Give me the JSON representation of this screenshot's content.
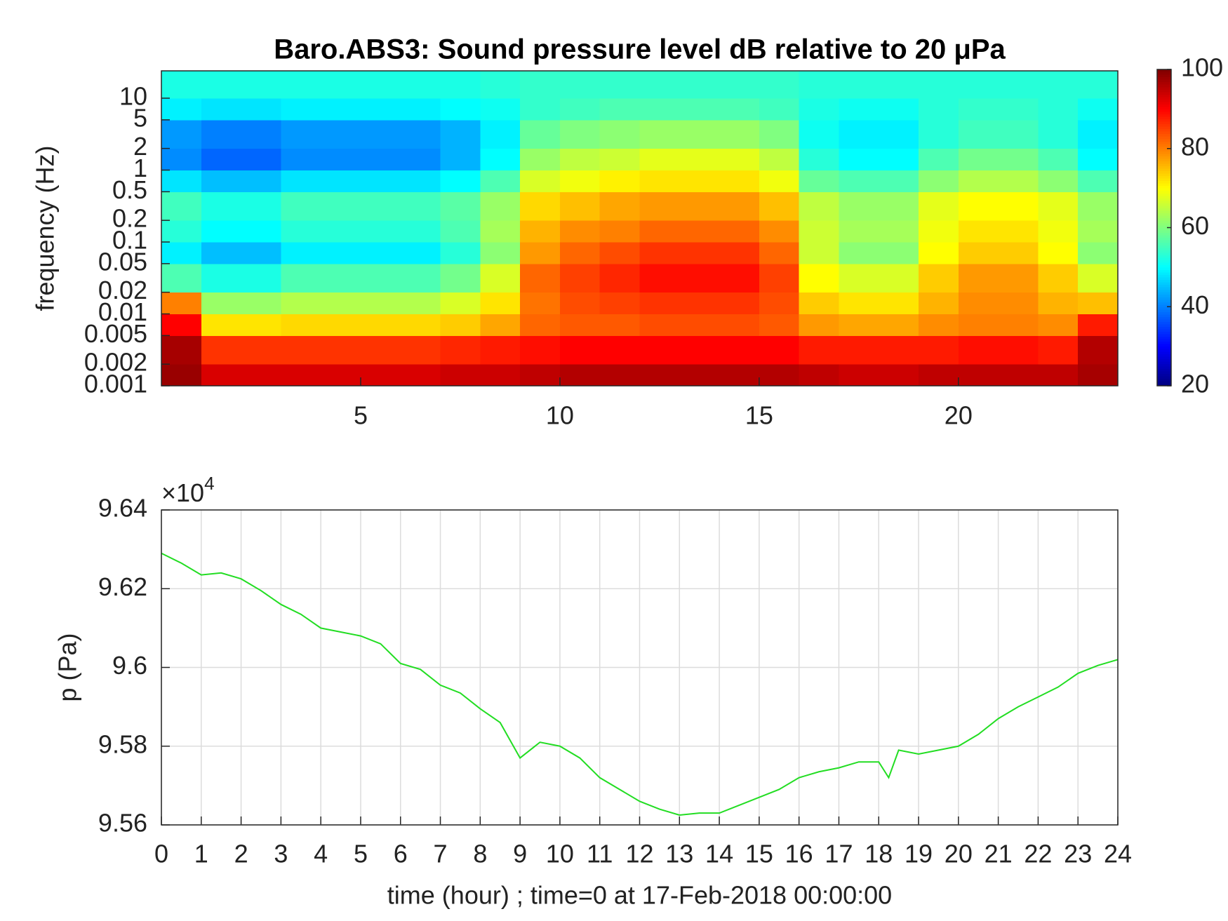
{
  "chart_data": [
    {
      "type": "heatmap",
      "title": "Baro.ABS3: Sound pressure level dB relative to 20 μPa",
      "ylabel": "frequency (Hz)",
      "colormap": "jet",
      "y_log": true,
      "x_bins": [
        0,
        1,
        2,
        3,
        4,
        5,
        6,
        7,
        8,
        9,
        10,
        11,
        12,
        13,
        14,
        15,
        16,
        17,
        18,
        19,
        20,
        21,
        22,
        23,
        24
      ],
      "y_bins": [
        0.001,
        0.002,
        0.005,
        0.01,
        0.02,
        0.05,
        0.1,
        0.2,
        0.5,
        1,
        2,
        5,
        10,
        24
      ],
      "values": [
        [
          98,
          93,
          93,
          93,
          93,
          93,
          93,
          94,
          94,
          95,
          96,
          96,
          96,
          96,
          96,
          96,
          95,
          94,
          94,
          95,
          95,
          95,
          95,
          97
        ],
        [
          97,
          86,
          86,
          86,
          86,
          86,
          86,
          87,
          88,
          89,
          90,
          90,
          90,
          90,
          90,
          90,
          88,
          88,
          88,
          88,
          89,
          89,
          88,
          96
        ],
        [
          90,
          72,
          72,
          73,
          73,
          73,
          73,
          74,
          77,
          82,
          83,
          83,
          84,
          84,
          84,
          83,
          78,
          77,
          77,
          79,
          80,
          80,
          79,
          88
        ],
        [
          80,
          62,
          62,
          64,
          64,
          64,
          64,
          67,
          72,
          81,
          84,
          85,
          86,
          86,
          86,
          84,
          74,
          72,
          72,
          76,
          79,
          79,
          76,
          75
        ],
        [
          56,
          52,
          52,
          56,
          56,
          56,
          56,
          59,
          67,
          82,
          85,
          87,
          89,
          89,
          89,
          85,
          70,
          67,
          67,
          74,
          78,
          78,
          74,
          67
        ],
        [
          49,
          45,
          45,
          49,
          49,
          49,
          49,
          53,
          61,
          78,
          82,
          84,
          86,
          86,
          86,
          82,
          66,
          61,
          61,
          70,
          74,
          74,
          70,
          61
        ],
        [
          53,
          50,
          50,
          53,
          53,
          53,
          53,
          56,
          63,
          76,
          79,
          80,
          82,
          82,
          82,
          79,
          66,
          63,
          63,
          69,
          72,
          72,
          69,
          63
        ],
        [
          55,
          52,
          52,
          55,
          55,
          55,
          55,
          57,
          62,
          73,
          75,
          77,
          78,
          78,
          78,
          75,
          65,
          62,
          62,
          68,
          70,
          70,
          68,
          62
        ],
        [
          48,
          45,
          45,
          48,
          48,
          48,
          48,
          50,
          56,
          67,
          69,
          71,
          72,
          72,
          72,
          69,
          58,
          56,
          56,
          61,
          64,
          64,
          61,
          56
        ],
        [
          41,
          38,
          38,
          41,
          41,
          41,
          41,
          44,
          50,
          62,
          65,
          66,
          68,
          68,
          68,
          65,
          53,
          50,
          50,
          56,
          59,
          59,
          56,
          50
        ],
        [
          42,
          40,
          40,
          42,
          42,
          42,
          42,
          44,
          49,
          58,
          60,
          61,
          62,
          62,
          62,
          60,
          51,
          49,
          49,
          53,
          55,
          55,
          53,
          49
        ],
        [
          49,
          48,
          48,
          49,
          49,
          49,
          49,
          50,
          51,
          54,
          55,
          56,
          56,
          56,
          56,
          55,
          52,
          51,
          51,
          53,
          54,
          54,
          53,
          51
        ],
        [
          52,
          52,
          52,
          52,
          52,
          52,
          52,
          52,
          53,
          54,
          54,
          54,
          54,
          54,
          54,
          54,
          53,
          53,
          53,
          53,
          53,
          53,
          53,
          53
        ]
      ],
      "xlim": [
        0,
        24
      ],
      "xticks": [
        5,
        10,
        15,
        20
      ],
      "ylim": [
        0.001,
        24
      ],
      "yticks": [
        0.001,
        0.002,
        0.005,
        0.01,
        0.02,
        0.05,
        0.1,
        0.2,
        0.5,
        1,
        2,
        5,
        10
      ],
      "clim": [
        20,
        100
      ],
      "cticks": [
        20,
        40,
        60,
        80,
        100
      ]
    },
    {
      "type": "line",
      "xlabel": "time (hour) ; time=0 at 17-Feb-2018 00:00:00",
      "ylabel": "p (Pa)",
      "y_multiplier": "×10",
      "y_multiplier_exponent": "4",
      "color": "#22dd22",
      "x": [
        0,
        0.5,
        1,
        1.5,
        2,
        2.5,
        3,
        3.5,
        4,
        4.5,
        5,
        5.5,
        6,
        6.5,
        7,
        7.5,
        8,
        8.5,
        9,
        9.5,
        10,
        10.5,
        11,
        11.5,
        12,
        12.5,
        13,
        13.5,
        14,
        14.5,
        15,
        15.5,
        16,
        16.5,
        17,
        17.5,
        18,
        18.25,
        18.5,
        19,
        19.5,
        20,
        20.5,
        21,
        21.5,
        22,
        22.5,
        23,
        23.5,
        24
      ],
      "values": [
        96290,
        96265,
        96235,
        96240,
        96225,
        96195,
        96160,
        96135,
        96100,
        96090,
        96080,
        96060,
        96010,
        95995,
        95955,
        95935,
        95895,
        95860,
        95770,
        95810,
        95800,
        95770,
        95720,
        95690,
        95660,
        95640,
        95625,
        95630,
        95630,
        95650,
        95670,
        95690,
        95720,
        95735,
        95745,
        95760,
        95760,
        95720,
        95790,
        95780,
        95790,
        95800,
        95830,
        95870,
        95900,
        95925,
        95950,
        95985,
        96005,
        96020
      ],
      "xlim": [
        0,
        24
      ],
      "xticks": [
        0,
        1,
        2,
        3,
        4,
        5,
        6,
        7,
        8,
        9,
        10,
        11,
        12,
        13,
        14,
        15,
        16,
        17,
        18,
        19,
        20,
        21,
        22,
        23,
        24
      ],
      "ylim": [
        95600,
        96400
      ],
      "yticks": [
        {
          "value": 95600,
          "label": "9.56"
        },
        {
          "value": 95800,
          "label": "9.58"
        },
        {
          "value": 96000,
          "label": "9.6"
        },
        {
          "value": 96200,
          "label": "9.62"
        },
        {
          "value": 96400,
          "label": "9.64"
        }
      ],
      "grid": true
    }
  ]
}
